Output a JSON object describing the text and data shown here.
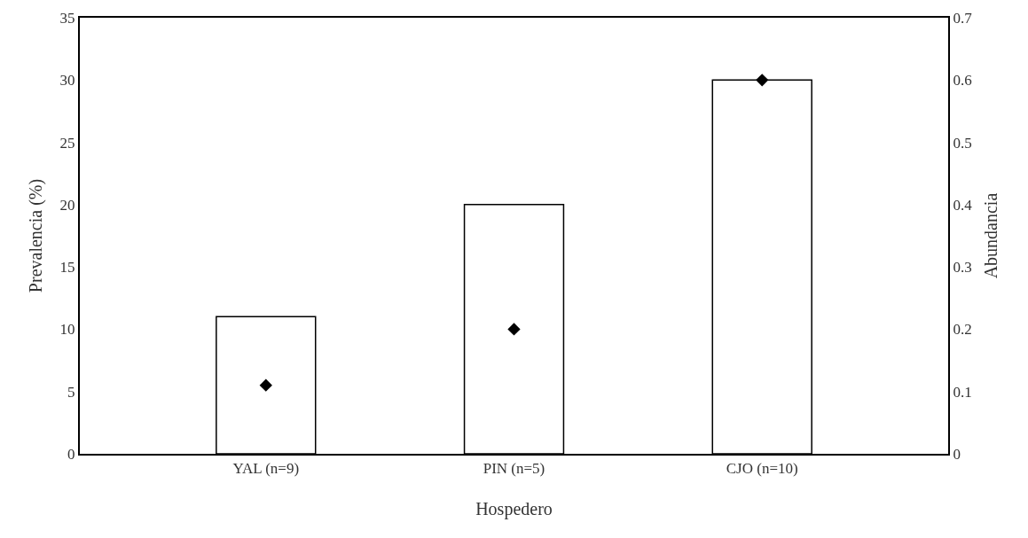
{
  "chart_data": {
    "type": "bar",
    "xlabel": "Hospedero",
    "ylabel": "Prevalencia (%)",
    "y2label": "Abundancia",
    "categories": [
      "YAL (n=9)",
      "PIN (n=5)",
      "CJO (n=10)"
    ],
    "series": [
      {
        "color": "#ffffff",
        "values": [
          11,
          20,
          30
        ]
      },
      {
        "type": "scatter",
        "axis": "y2",
        "color": "#000000",
        "marker": "diamond",
        "values": [
          0.11,
          0.2,
          0.6
        ]
      }
    ],
    "ylim": [
      0,
      35
    ],
    "yticks": [
      0,
      5,
      10,
      15,
      20,
      25,
      30,
      35
    ],
    "y2lim": [
      0,
      0.7
    ],
    "y2ticks": [
      0,
      0.1,
      0.2,
      0.3,
      0.4,
      0.5,
      0.6,
      0.7
    ]
  }
}
